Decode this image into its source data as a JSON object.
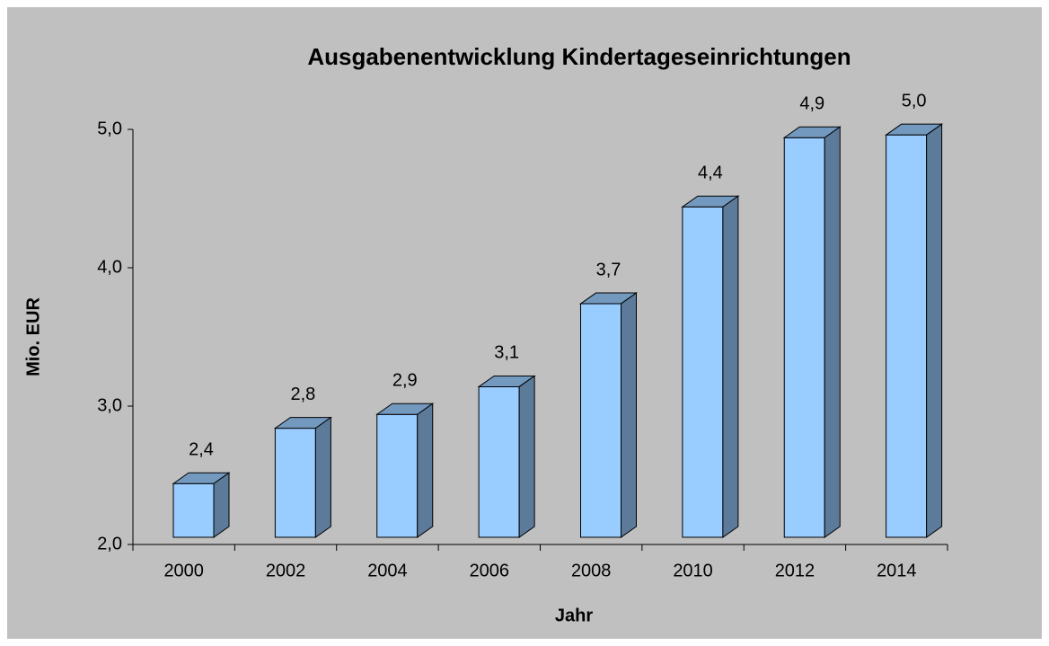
{
  "chart_data": {
    "type": "bar3d",
    "title": "Ausgabenentwicklung Kindertageseinrichtungen",
    "x_label": "Jahr",
    "y_label": "Mio. EUR",
    "categories": [
      "2000",
      "2002",
      "2004",
      "2006",
      "2008",
      "2010",
      "2012",
      "2014"
    ],
    "values": [
      2.44,
      2.84,
      2.94,
      3.14,
      3.74,
      4.44,
      4.94,
      4.96
    ],
    "value_labels": [
      "2,4",
      "2,8",
      "2,9",
      "3,1",
      "3,7",
      "4,4",
      "4,9",
      "5,0"
    ],
    "color": "#99ccff",
    "ylim": [
      2,
      5
    ],
    "yticks": [
      {
        "value": 2,
        "label": "2,0"
      },
      {
        "value": 3,
        "label": "3,0"
      },
      {
        "value": 4,
        "label": "4,0"
      },
      {
        "value": 5,
        "label": "5,0"
      }
    ]
  }
}
